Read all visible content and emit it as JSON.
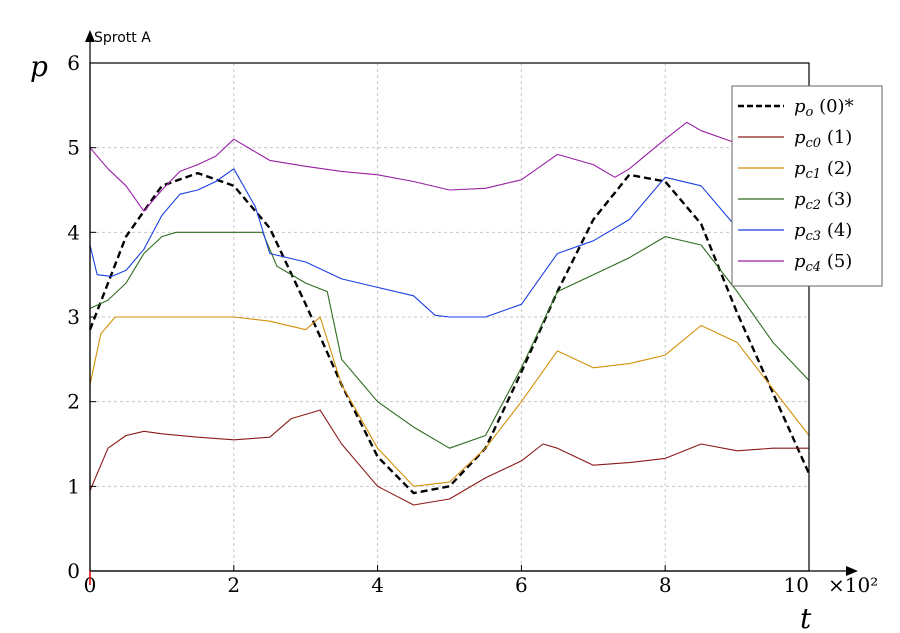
{
  "chart_data": {
    "type": "line",
    "caption": "Sprott A",
    "xlabel": "t",
    "ylabel": "p",
    "x_scale_label": "×10²",
    "xlim": [
      0,
      10
    ],
    "ylim": [
      0,
      6
    ],
    "x_ticks": [
      0,
      2,
      4,
      6,
      8,
      10
    ],
    "y_ticks": [
      0,
      1,
      2,
      3,
      4,
      5,
      6
    ],
    "grid": true,
    "legend_position": "top-right",
    "series": [
      {
        "name": "p_o",
        "legend_sub": "o",
        "legend_suffix": "(0)*",
        "color": "#000000",
        "dashed": true,
        "x": [
          0,
          0.5,
          1,
          1.5,
          2,
          2.5,
          3,
          3.5,
          4,
          4.5,
          5,
          5.5,
          6,
          6.5,
          7,
          7.5,
          8,
          8.5,
          9,
          9.5,
          10
        ],
        "y": [
          2.85,
          3.95,
          4.55,
          4.7,
          4.55,
          4.05,
          3.15,
          2.2,
          1.35,
          0.92,
          1.0,
          1.45,
          2.35,
          3.3,
          4.15,
          4.68,
          4.6,
          4.1,
          3.05,
          2.1,
          1.15
        ]
      },
      {
        "name": "p_c0",
        "legend_sub": "c0",
        "legend_suffix": "(1)",
        "color": "#8b1a1a",
        "dashed": false,
        "x": [
          0,
          0.25,
          0.5,
          0.75,
          1,
          1.5,
          2,
          2.5,
          2.8,
          3.2,
          3.5,
          4,
          4.5,
          5,
          5.5,
          6,
          6.3,
          6.5,
          7,
          7.5,
          8,
          8.5,
          9,
          9.5,
          10
        ],
        "y": [
          0.95,
          1.45,
          1.6,
          1.65,
          1.62,
          1.58,
          1.55,
          1.58,
          1.8,
          1.9,
          1.5,
          1.0,
          0.78,
          0.85,
          1.1,
          1.3,
          1.5,
          1.45,
          1.25,
          1.28,
          1.33,
          1.5,
          1.42,
          1.45,
          1.45
        ]
      },
      {
        "name": "p_c1",
        "legend_sub": "c1",
        "legend_suffix": "(2)",
        "color": "#d4900a",
        "dashed": false,
        "x": [
          0,
          0.15,
          0.35,
          0.5,
          1,
          1.5,
          2,
          2.5,
          3,
          3.2,
          3.5,
          4,
          4.5,
          5,
          5.5,
          6,
          6.5,
          7,
          7.5,
          8,
          8.5,
          9,
          9.5,
          10
        ],
        "y": [
          2.2,
          2.8,
          3.0,
          3.0,
          3.0,
          3.0,
          3.0,
          2.95,
          2.85,
          3.0,
          2.2,
          1.45,
          1.0,
          1.05,
          1.45,
          2.0,
          2.6,
          2.4,
          2.45,
          2.55,
          2.9,
          2.7,
          2.15,
          1.6
        ]
      },
      {
        "name": "p_c2",
        "legend_sub": "c2",
        "legend_suffix": "(3)",
        "color": "#2e6b1e",
        "dashed": false,
        "x": [
          0,
          0.25,
          0.5,
          0.75,
          1,
          1.2,
          1.5,
          2,
          2.4,
          2.6,
          3,
          3.3,
          3.5,
          4,
          4.5,
          5,
          5.5,
          6,
          6.5,
          7,
          7.5,
          8,
          8.5,
          9,
          9.5,
          10
        ],
        "y": [
          3.1,
          3.2,
          3.4,
          3.75,
          3.95,
          4.0,
          4.0,
          4.0,
          4.0,
          3.6,
          3.4,
          3.3,
          2.5,
          2.0,
          1.7,
          1.45,
          1.6,
          2.4,
          3.3,
          3.5,
          3.7,
          3.95,
          3.85,
          3.3,
          2.7,
          2.25
        ]
      },
      {
        "name": "p_c3",
        "legend_sub": "c3",
        "legend_suffix": "(4)",
        "color": "#1a3fe0",
        "dashed": false,
        "x": [
          0,
          0.1,
          0.3,
          0.5,
          0.75,
          1,
          1.25,
          1.5,
          1.75,
          2,
          2.3,
          2.5,
          3,
          3.5,
          4,
          4.5,
          4.8,
          5,
          5.5,
          6,
          6.5,
          7,
          7.5,
          8,
          8.5,
          9,
          9.5,
          10
        ],
        "y": [
          3.85,
          3.5,
          3.48,
          3.55,
          3.8,
          4.2,
          4.45,
          4.5,
          4.6,
          4.75,
          4.3,
          3.75,
          3.65,
          3.45,
          3.35,
          3.25,
          3.02,
          3.0,
          3.0,
          3.15,
          3.75,
          3.9,
          4.15,
          4.65,
          4.55,
          4.05,
          4.05,
          3.8
        ]
      },
      {
        "name": "p_c4",
        "legend_sub": "c4",
        "legend_suffix": "(5)",
        "color": "#9a1fa6",
        "dashed": false,
        "x": [
          0,
          0.25,
          0.5,
          0.75,
          1,
          1.25,
          1.5,
          1.75,
          2,
          2.5,
          3,
          3.5,
          4,
          4.5,
          5,
          5.5,
          6,
          6.5,
          7,
          7.3,
          7.5,
          8,
          8.3,
          8.5,
          9,
          9.5,
          10
        ],
        "y": [
          5.0,
          4.75,
          4.55,
          4.25,
          4.5,
          4.72,
          4.8,
          4.9,
          5.1,
          4.85,
          4.78,
          4.72,
          4.68,
          4.6,
          4.5,
          4.52,
          4.62,
          4.92,
          4.8,
          4.65,
          4.75,
          5.1,
          5.3,
          5.2,
          5.05,
          5.0,
          5.05
        ]
      }
    ]
  }
}
